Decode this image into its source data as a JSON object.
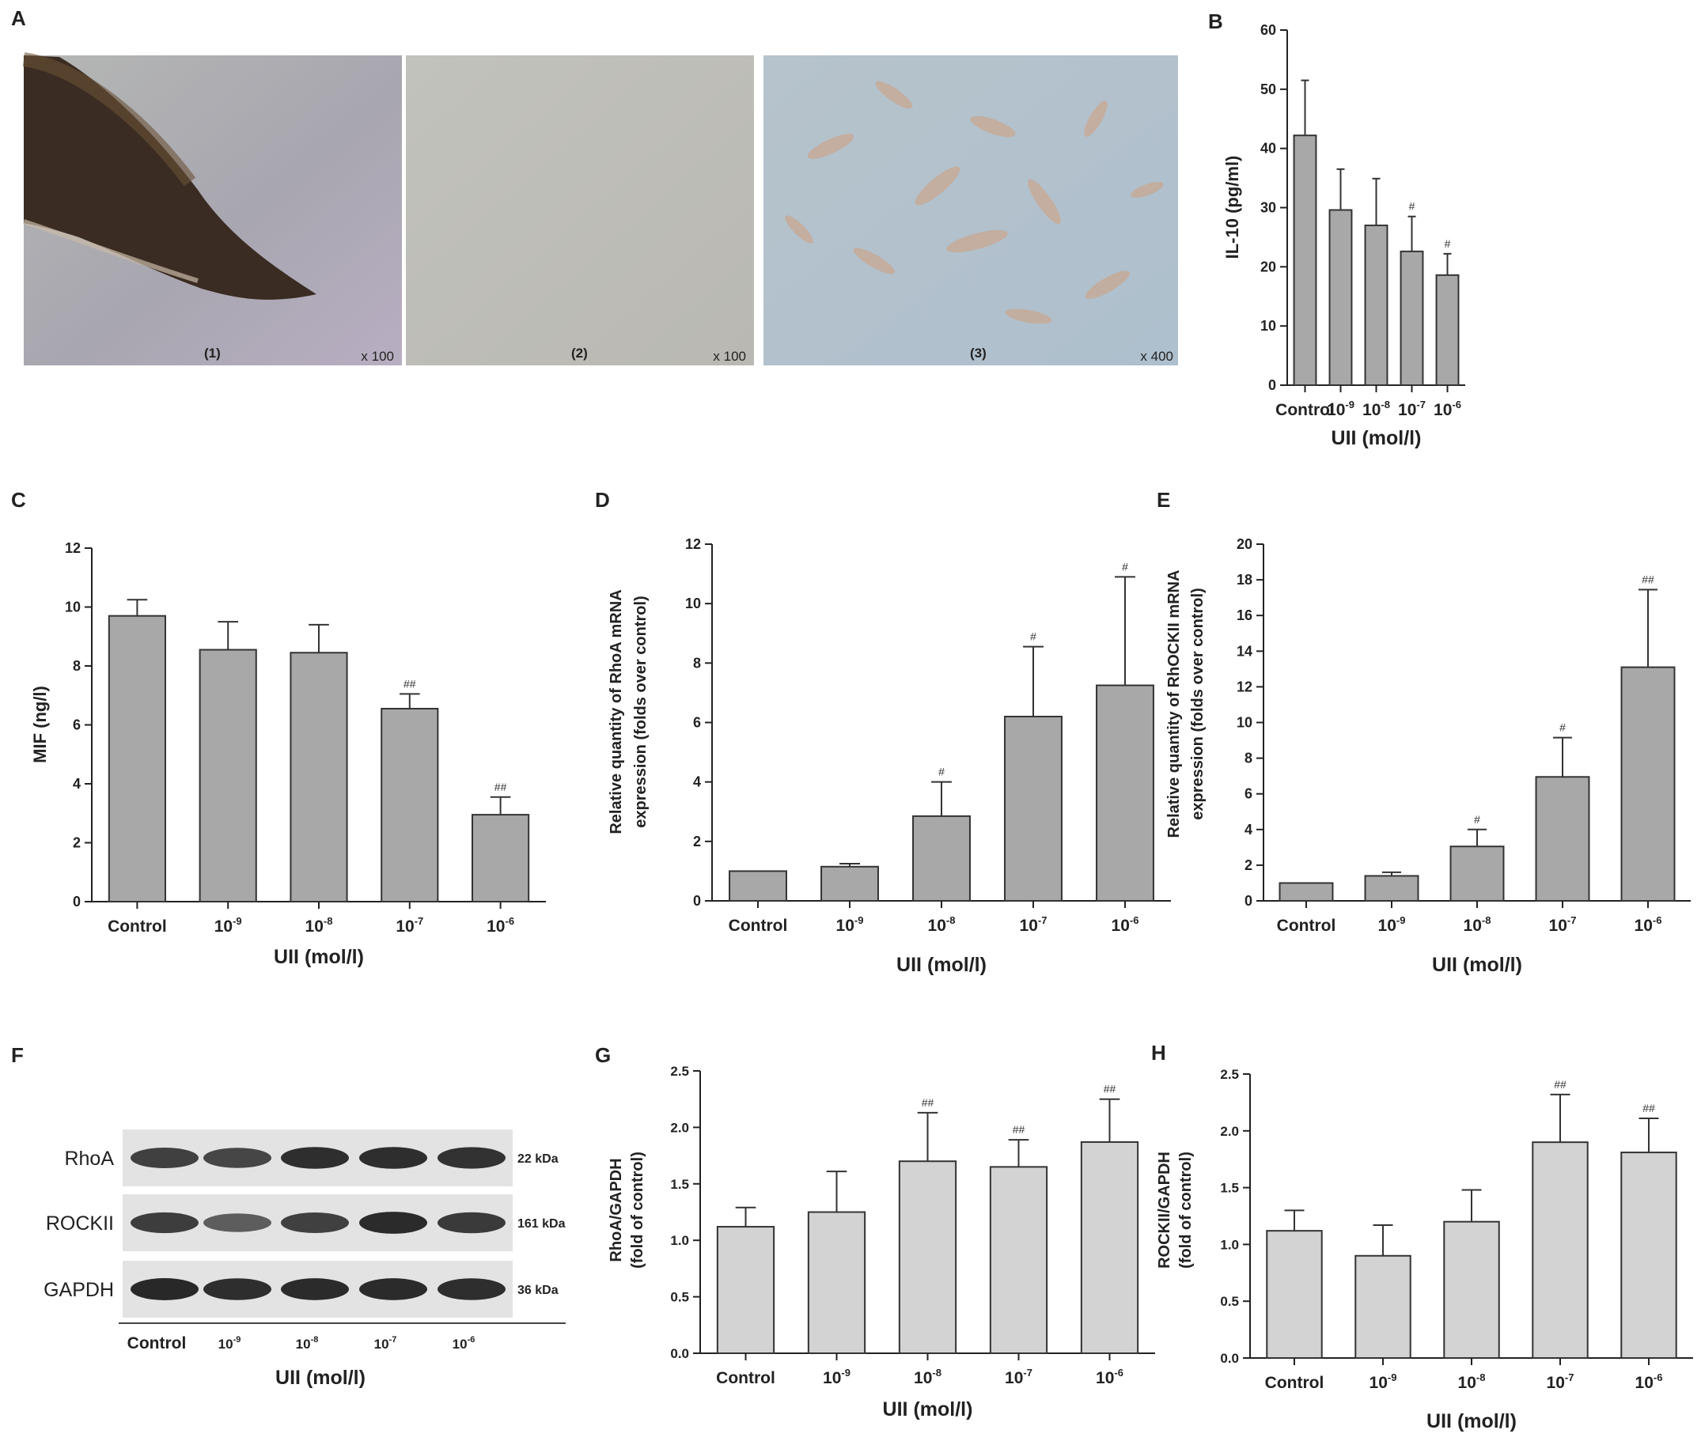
{
  "panel_letters": {
    "A": "A",
    "B": "B",
    "C": "C",
    "D": "D",
    "E": "E",
    "F": "F",
    "G": "G",
    "H": "H"
  },
  "micrographs": [
    {
      "label": "(1)",
      "magnification": "x 100"
    },
    {
      "label": "(2)",
      "magnification": "x 100"
    },
    {
      "label": "(3)",
      "magnification": "x 400"
    }
  ],
  "western_blot": {
    "proteins": [
      {
        "name": "RhoA",
        "kda": "22 kDa"
      },
      {
        "name": "ROCKII",
        "kda": "161 kDa"
      },
      {
        "name": "GAPDH",
        "kda": "36 kDa"
      }
    ],
    "band_intensity": [
      [
        0.8,
        0.75,
        0.95,
        0.95,
        0.92
      ],
      [
        0.82,
        0.55,
        0.8,
        0.98,
        0.85
      ],
      [
        1.0,
        0.95,
        0.97,
        0.97,
        0.95
      ]
    ],
    "lane_labels": [
      {
        "base": "Control",
        "exp": ""
      },
      {
        "base": "10",
        "exp": "-9"
      },
      {
        "base": "10",
        "exp": "-8"
      },
      {
        "base": "10",
        "exp": "-7"
      },
      {
        "base": "10",
        "exp": "-6"
      }
    ],
    "xlabel": "UII (mol/l)"
  },
  "chart_data": [
    {
      "id": "B",
      "type": "bar",
      "categories": [
        {
          "base": "Control",
          "exp": ""
        },
        {
          "base": "10",
          "exp": "-9"
        },
        {
          "base": "10",
          "exp": "-8"
        },
        {
          "base": "10",
          "exp": "-7"
        },
        {
          "base": "10",
          "exp": "-6"
        }
      ],
      "values": [
        42.2,
        29.6,
        27.0,
        22.6,
        18.6
      ],
      "errors": [
        9.3,
        6.9,
        7.9,
        5.9,
        3.6
      ],
      "significance": [
        "",
        "",
        "",
        "#",
        "#"
      ],
      "ylabel": [
        "IL-10 (pg/ml)"
      ],
      "xlabel": "UII (mol/l)",
      "ylim": [
        0,
        60
      ],
      "yticks": [
        "0",
        "10",
        "20",
        "30",
        "40",
        "50",
        "60"
      ],
      "bar_color": "#a8a8a8"
    },
    {
      "id": "C",
      "type": "bar",
      "categories": [
        {
          "base": "Control",
          "exp": ""
        },
        {
          "base": "10",
          "exp": "-9"
        },
        {
          "base": "10",
          "exp": "-8"
        },
        {
          "base": "10",
          "exp": "-7"
        },
        {
          "base": "10",
          "exp": "-6"
        }
      ],
      "values": [
        9.7,
        8.55,
        8.45,
        6.55,
        2.95
      ],
      "errors": [
        0.55,
        0.95,
        0.95,
        0.5,
        0.6
      ],
      "significance": [
        "",
        "",
        "",
        "##",
        "##"
      ],
      "ylabel": [
        "MIF (ng/l)"
      ],
      "xlabel": "UII (mol/l)",
      "ylim": [
        0,
        12
      ],
      "yticks": [
        "0",
        "2",
        "4",
        "6",
        "8",
        "10",
        "12"
      ],
      "bar_color": "#a8a8a8"
    },
    {
      "id": "D",
      "type": "bar",
      "categories": [
        {
          "base": "Control",
          "exp": ""
        },
        {
          "base": "10",
          "exp": "-9"
        },
        {
          "base": "10",
          "exp": "-8"
        },
        {
          "base": "10",
          "exp": "-7"
        },
        {
          "base": "10",
          "exp": "-6"
        }
      ],
      "values": [
        1.0,
        1.15,
        2.85,
        6.2,
        7.25
      ],
      "errors": [
        0.0,
        0.1,
        1.15,
        2.35,
        3.65
      ],
      "significance": [
        "",
        "",
        "#",
        "#",
        "#"
      ],
      "ylabel": [
        "Relative quantity of  RhoA  mRNA",
        "expression (folds over control)"
      ],
      "xlabel": "UII (mol/l)",
      "ylim": [
        0,
        12
      ],
      "yticks": [
        "0",
        "2",
        "4",
        "6",
        "8",
        "10",
        "12"
      ],
      "bar_color": "#a8a8a8"
    },
    {
      "id": "E",
      "type": "bar",
      "categories": [
        {
          "base": "Control",
          "exp": ""
        },
        {
          "base": "10",
          "exp": "-9"
        },
        {
          "base": "10",
          "exp": "-8"
        },
        {
          "base": "10",
          "exp": "-7"
        },
        {
          "base": "10",
          "exp": "-6"
        }
      ],
      "values": [
        1.0,
        1.4,
        3.05,
        6.95,
        13.1
      ],
      "errors": [
        0.0,
        0.2,
        0.95,
        2.2,
        4.35
      ],
      "significance": [
        "",
        "",
        "#",
        "#",
        "##"
      ],
      "ylabel": [
        "Relative quantity of RhOCKII mRNA",
        "expression (folds over control)"
      ],
      "xlabel": "UII (mol/l)",
      "ylim": [
        0,
        20
      ],
      "yticks": [
        "0",
        "2",
        "4",
        "6",
        "8",
        "10",
        "12",
        "14",
        "16",
        "18",
        "20"
      ],
      "bar_color": "#a8a8a8"
    },
    {
      "id": "G",
      "type": "bar",
      "categories": [
        {
          "base": "Control",
          "exp": ""
        },
        {
          "base": "10",
          "exp": "-9"
        },
        {
          "base": "10",
          "exp": "-8"
        },
        {
          "base": "10",
          "exp": "-7"
        },
        {
          "base": "10",
          "exp": "-6"
        }
      ],
      "values": [
        1.12,
        1.25,
        1.7,
        1.65,
        1.87
      ],
      "errors": [
        0.17,
        0.36,
        0.43,
        0.24,
        0.38
      ],
      "significance": [
        "",
        "",
        "##",
        "##",
        "##"
      ],
      "ylabel": [
        "RhoA/GAPDH",
        "(fold of control)"
      ],
      "xlabel": "UII (mol/l)",
      "ylim": [
        0,
        2.5
      ],
      "yticks": [
        "0.0",
        "0.5",
        "1.0",
        "1.5",
        "2.0",
        "2.5"
      ],
      "bar_color": "#d3d3d3"
    },
    {
      "id": "H",
      "type": "bar",
      "categories": [
        {
          "base": "Control",
          "exp": ""
        },
        {
          "base": "10",
          "exp": "-9"
        },
        {
          "base": "10",
          "exp": "-8"
        },
        {
          "base": "10",
          "exp": "-7"
        },
        {
          "base": "10",
          "exp": "-6"
        }
      ],
      "values": [
        1.12,
        0.9,
        1.2,
        1.9,
        1.81
      ],
      "errors": [
        0.18,
        0.27,
        0.28,
        0.42,
        0.3
      ],
      "significance": [
        "",
        "",
        "",
        "##",
        "##"
      ],
      "ylabel": [
        "ROCKII/GAPDH",
        "(fold of control)"
      ],
      "xlabel": "UII (mol/l)",
      "ylim": [
        0,
        2.5
      ],
      "yticks": [
        "0.0",
        "0.5",
        "1.0",
        "1.5",
        "2.0",
        "2.5"
      ],
      "bar_color": "#d3d3d3"
    }
  ]
}
